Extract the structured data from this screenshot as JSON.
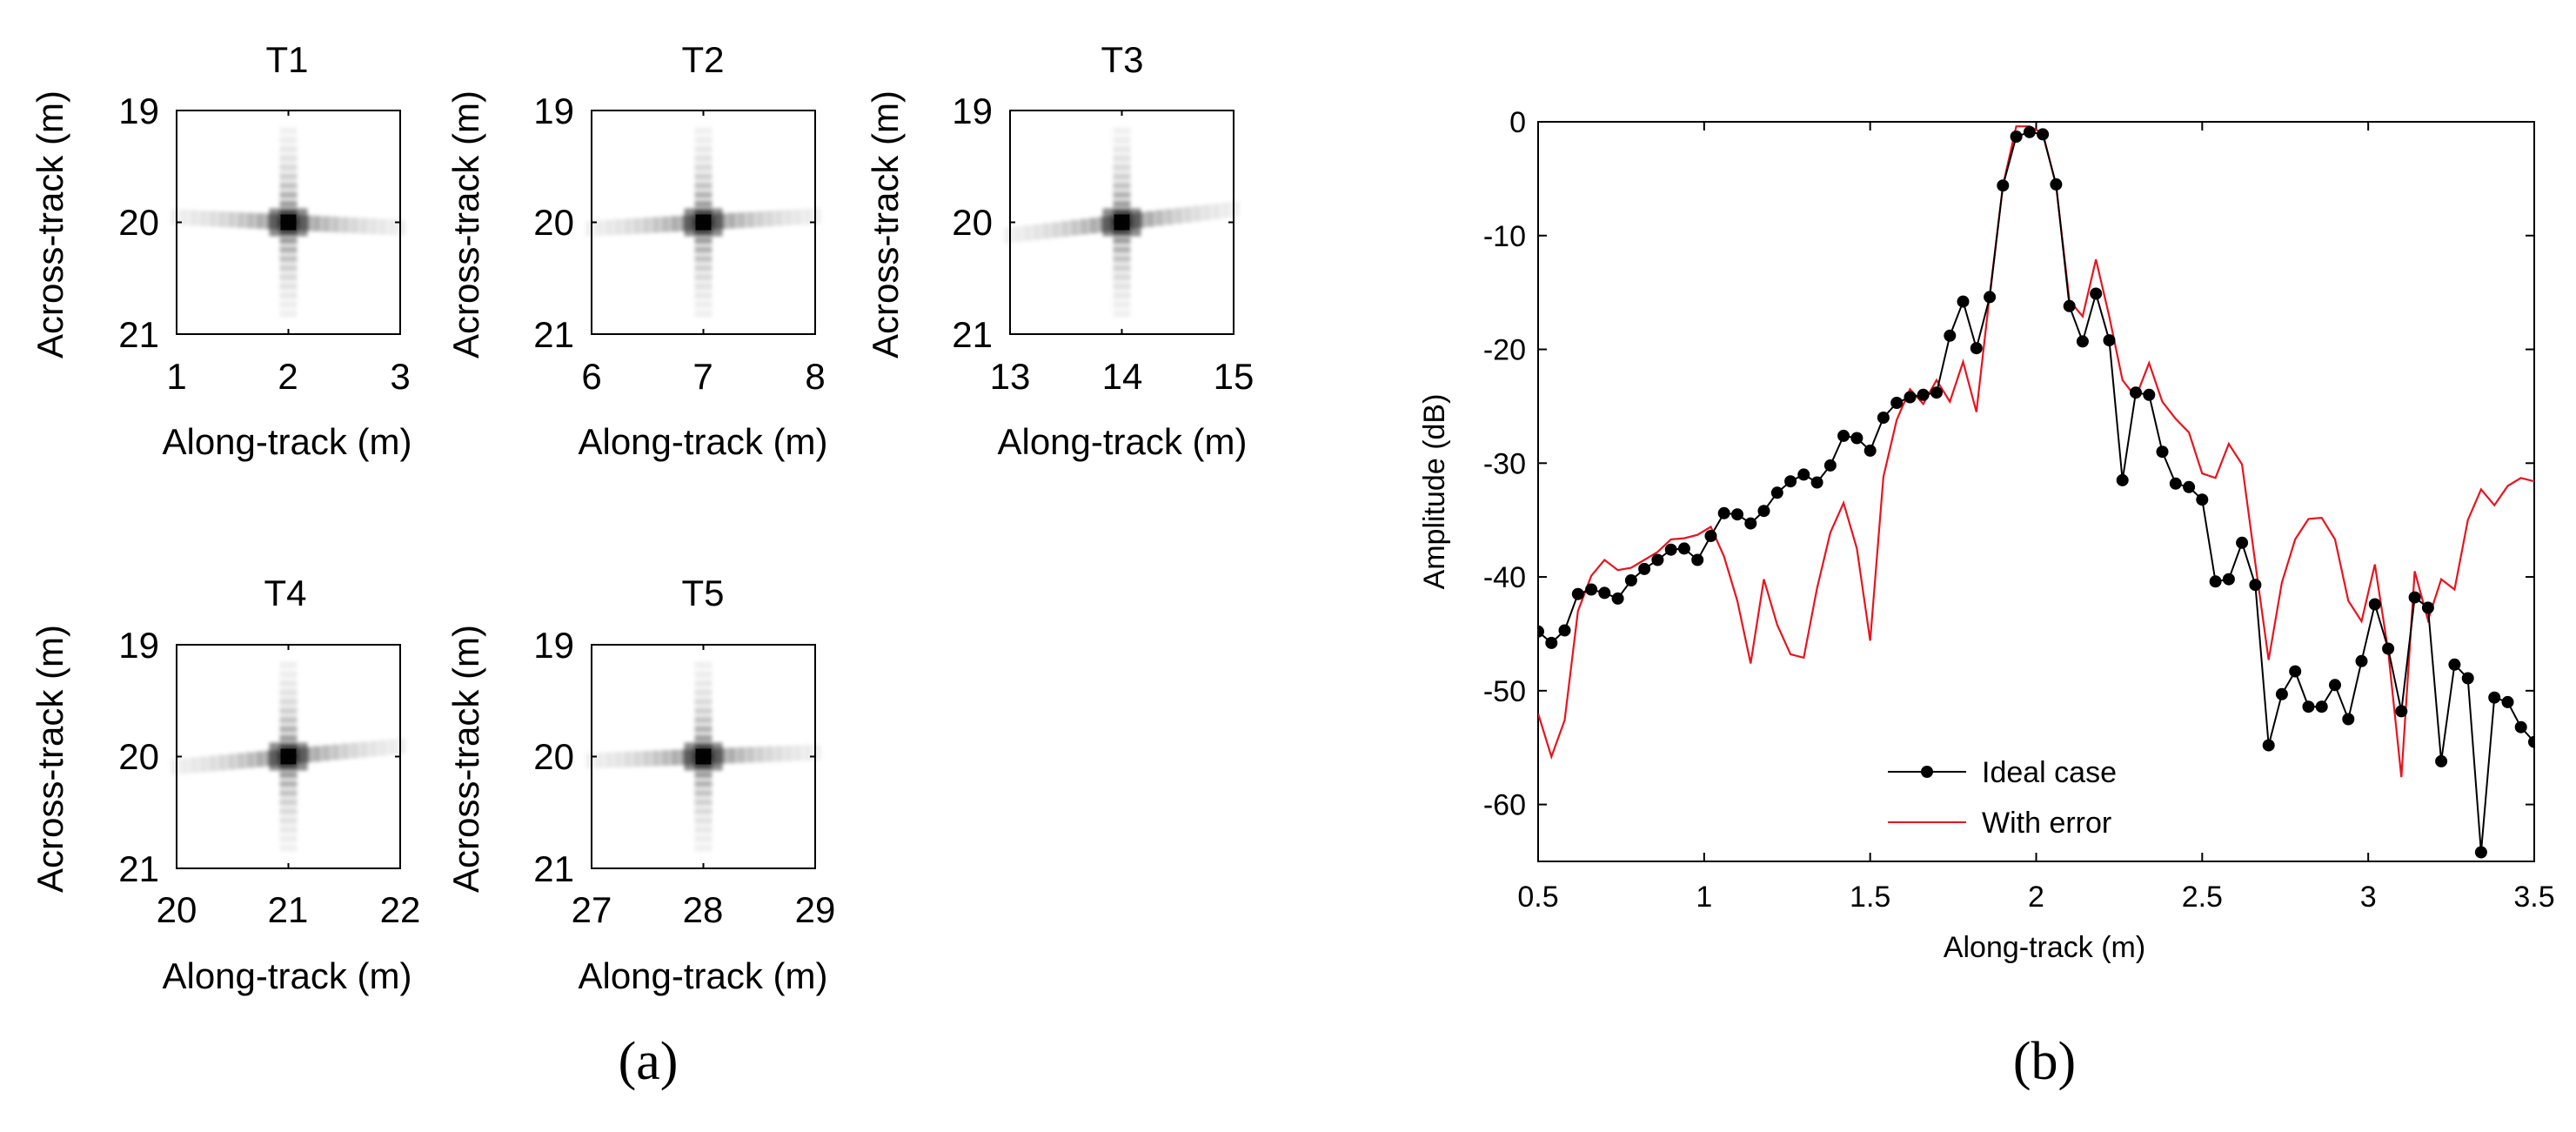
{
  "chart_data": [
    {
      "type": "heatmap",
      "title": "T1",
      "xlabel": "Along-track (m)",
      "ylabel": "Across-track (m)",
      "xlim": [
        1,
        3
      ],
      "ylim": [
        19,
        21
      ],
      "x_ticks": [
        "1",
        "2",
        "3"
      ],
      "y_ticks": [
        "19",
        "20",
        "21"
      ],
      "peak": [
        2,
        20
      ],
      "side_lobe_tilt": 0.1
    },
    {
      "type": "heatmap",
      "title": "T2",
      "xlabel": "Along-track (m)",
      "ylabel": "Across-track (m)",
      "xlim": [
        6,
        8
      ],
      "ylim": [
        19,
        21
      ],
      "x_ticks": [
        "6",
        "7",
        "8"
      ],
      "y_ticks": [
        "19",
        "20",
        "21"
      ],
      "peak": [
        7,
        20
      ],
      "side_lobe_tilt": -0.12
    },
    {
      "type": "heatmap",
      "title": "T3",
      "xlabel": "Along-track (m)",
      "ylabel": "Across-track (m)",
      "xlim": [
        13,
        15
      ],
      "ylim": [
        19,
        21
      ],
      "x_ticks": [
        "13",
        "14",
        "15"
      ],
      "y_ticks": [
        "19",
        "20",
        "21"
      ],
      "peak": [
        14,
        20
      ],
      "side_lobe_tilt": -0.25
    },
    {
      "type": "heatmap",
      "title": "T4",
      "xlabel": "Along-track (m)",
      "ylabel": "Across-track (m)",
      "xlim": [
        20,
        22
      ],
      "ylim": [
        19,
        21
      ],
      "x_ticks": [
        "20",
        "21",
        "22"
      ],
      "y_ticks": [
        "19",
        "20",
        "21"
      ],
      "peak": [
        21,
        20
      ],
      "side_lobe_tilt": -0.2
    },
    {
      "type": "heatmap",
      "title": "T5",
      "xlabel": "Along-track (m)",
      "ylabel": "Across-track (m)",
      "xlim": [
        27,
        29
      ],
      "ylim": [
        19,
        21
      ],
      "x_ticks": [
        "27",
        "28",
        "29"
      ],
      "y_ticks": [
        "19",
        "20",
        "21"
      ],
      "peak": [
        28,
        20
      ],
      "side_lobe_tilt": -0.08
    },
    {
      "type": "line",
      "xlabel": "Along-track (m)",
      "ylabel": "Amplitude (dB)",
      "xlim": [
        0.5,
        3.5
      ],
      "ylim": [
        -65,
        0
      ],
      "x_ticks": [
        0.5,
        1,
        1.5,
        2,
        2.5,
        3,
        3.5
      ],
      "x_tick_labels": [
        "0.5",
        "1",
        "1.5",
        "2",
        "2.5",
        "3",
        "3.5"
      ],
      "y_ticks": [
        0,
        -10,
        -20,
        -30,
        -40,
        -50,
        -60
      ],
      "y_tick_labels": [
        "0",
        "-10",
        "-20",
        "-30",
        "-40",
        "-50",
        "-60"
      ],
      "legend_position": "bottom-center",
      "series": [
        {
          "name": "Ideal case",
          "color": "#000000",
          "marker": "circle",
          "x": [
            0.5,
            0.54,
            0.58,
            0.62,
            0.66,
            0.7,
            0.74,
            0.78,
            0.82,
            0.86,
            0.9,
            0.94,
            0.98,
            1.02,
            1.06,
            1.1,
            1.14,
            1.18,
            1.22,
            1.26,
            1.3,
            1.34,
            1.38,
            1.42,
            1.46,
            1.5,
            1.54,
            1.58,
            1.62,
            1.66,
            1.7,
            1.74,
            1.78,
            1.82,
            1.86,
            1.9,
            1.94,
            1.98,
            2.02,
            2.06,
            2.1,
            2.14,
            2.18,
            2.22,
            2.26,
            2.3,
            2.34,
            2.38,
            2.42,
            2.46,
            2.5,
            2.54,
            2.58,
            2.62,
            2.66,
            2.7,
            2.74,
            2.78,
            2.82,
            2.86,
            2.9,
            2.94,
            2.98,
            3.02,
            3.06,
            3.1,
            3.14,
            3.18,
            3.22,
            3.26,
            3.3,
            3.34,
            3.38,
            3.42,
            3.46,
            3.5
          ],
          "y": [
            -44.8,
            -45.8,
            -44.7,
            -41.5,
            -41.1,
            -41.4,
            -41.9,
            -40.3,
            -39.3,
            -38.5,
            -37.6,
            -37.5,
            -38.5,
            -36.4,
            -34.4,
            -34.5,
            -35.3,
            -34.2,
            -32.6,
            -31.6,
            -31.0,
            -31.7,
            -30.2,
            -27.6,
            -27.8,
            -28.9,
            -26.0,
            -24.7,
            -24.2,
            -24.0,
            -23.8,
            -18.8,
            -15.8,
            -19.9,
            -15.4,
            -5.6,
            -1.3,
            -0.9,
            -1.1,
            -5.5,
            -16.2,
            -19.3,
            -15.1,
            -19.2,
            -31.5,
            -23.8,
            -24.0,
            -29.0,
            -31.8,
            -32.1,
            -33.2,
            -40.4,
            -40.2,
            -37.0,
            -40.7,
            -54.8,
            -50.3,
            -48.3,
            -51.4,
            -51.4,
            -49.5,
            -52.5,
            -47.4,
            -42.4,
            -46.3,
            -51.8,
            -41.8,
            -42.7,
            -56.2,
            -47.7,
            -48.9,
            -64.2,
            -50.6,
            -51.0,
            -53.2,
            -54.5
          ]
        },
        {
          "name": "With error",
          "color": "#e8141e",
          "marker": "none",
          "x": [
            0.5,
            0.54,
            0.58,
            0.62,
            0.66,
            0.7,
            0.74,
            0.78,
            0.82,
            0.86,
            0.9,
            0.94,
            0.98,
            1.02,
            1.06,
            1.1,
            1.14,
            1.18,
            1.22,
            1.26,
            1.3,
            1.34,
            1.38,
            1.42,
            1.46,
            1.5,
            1.54,
            1.58,
            1.62,
            1.66,
            1.7,
            1.74,
            1.78,
            1.82,
            1.86,
            1.9,
            1.94,
            1.98,
            2.02,
            2.06,
            2.1,
            2.14,
            2.18,
            2.22,
            2.26,
            2.3,
            2.34,
            2.38,
            2.42,
            2.46,
            2.5,
            2.54,
            2.58,
            2.62,
            2.66,
            2.7,
            2.74,
            2.78,
            2.82,
            2.86,
            2.9,
            2.94,
            2.98,
            3.02,
            3.06,
            3.1,
            3.14,
            3.18,
            3.22,
            3.26,
            3.3,
            3.34,
            3.38,
            3.42,
            3.46,
            3.5
          ],
          "y": [
            -52.0,
            -55.8,
            -52.6,
            -43.0,
            -39.9,
            -38.5,
            -39.4,
            -39.2,
            -38.5,
            -37.8,
            -36.7,
            -36.6,
            -36.3,
            -35.6,
            -38.2,
            -42.1,
            -47.6,
            -40.2,
            -44.2,
            -46.8,
            -47.1,
            -41.0,
            -36.1,
            -33.5,
            -37.5,
            -45.6,
            -31.2,
            -26.2,
            -23.5,
            -24.8,
            -22.7,
            -24.6,
            -21.1,
            -25.5,
            -15.2,
            -5.6,
            -0.4,
            -0.4,
            -1.0,
            -5.6,
            -15.7,
            -17.1,
            -12.1,
            -17.1,
            -22.7,
            -24.2,
            -21.2,
            -24.6,
            -26.1,
            -27.3,
            -30.9,
            -31.3,
            -28.3,
            -30.1,
            -38.8,
            -47.3,
            -40.5,
            -36.7,
            -34.9,
            -34.8,
            -36.7,
            -42.1,
            -43.9,
            -38.9,
            -46.5,
            -57.6,
            -39.5,
            -43.8,
            -40.2,
            -41.1,
            -35.0,
            -32.3,
            -33.7,
            -32.0,
            -31.3,
            -31.6
          ]
        }
      ]
    }
  ],
  "panel_labels": [
    "(a)",
    "(b)"
  ]
}
